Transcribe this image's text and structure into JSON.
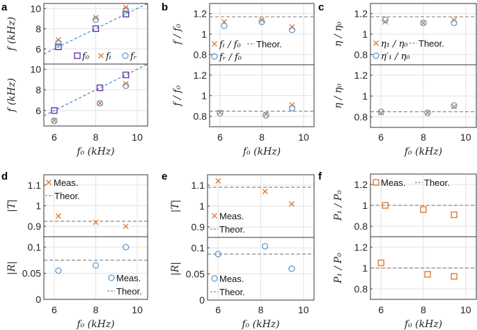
{
  "colors": {
    "f0": "#6a35a8",
    "meas_x": "#e8782b",
    "meas_o": "#5b9bd5",
    "theory": "#888888",
    "fit": "#3d85c6"
  },
  "chart_data": [
    {
      "panel": "a",
      "type": "scatter",
      "xlabel": "f₀ (kHz)",
      "xlim": [
        5.5,
        10.5
      ],
      "xticks": [
        6,
        8,
        10
      ],
      "grid": true,
      "subplots": [
        {
          "ylabel": "f (kHz)",
          "ylim": [
            4.5,
            10.5
          ],
          "yticks": [
            6,
            8,
            10
          ],
          "theory": null,
          "fit_line": "y = x",
          "series": [
            {
              "name": "f₀",
              "marker": "square",
              "color": "#6a35a8",
              "x": [
                6.2,
                8,
                9.45
              ],
              "y": [
                6.2,
                8,
                9.45
              ]
            },
            {
              "name": "fₜ",
              "marker": "x",
              "color": "#e8782b",
              "x": [
                6.2,
                8,
                9.45
              ],
              "y": [
                6.9,
                9.1,
                10.1
              ]
            },
            {
              "name": "fᵣ",
              "marker": "circle",
              "color": "#5b9bd5",
              "x": [
                6.2,
                8,
                9.45
              ],
              "y": [
                6.6,
                8.9,
                9.85
              ]
            }
          ],
          "legend": [
            {
              "text": "f₀",
              "marker": "square",
              "color": "#6a35a8"
            },
            {
              "text": "fₜ",
              "marker": "x",
              "color": "#e8782b"
            },
            {
              "text": "fᵣ",
              "marker": "circle",
              "color": "#5b9bd5"
            }
          ]
        },
        {
          "ylabel": "f (kHz)",
          "ylim": [
            4.5,
            10.5
          ],
          "yticks": [
            6,
            8,
            10
          ],
          "theory": null,
          "fit_line": "y = x",
          "series": [
            {
              "marker": "square",
              "color": "#6a35a8",
              "x": [
                6,
                8.2,
                9.45
              ],
              "y": [
                6,
                8.2,
                9.45
              ]
            },
            {
              "marker": "x",
              "color": "#e8782b",
              "x": [
                6,
                8.2,
                9.45
              ],
              "y": [
                5.05,
                6.7,
                8.6
              ]
            },
            {
              "marker": "circle",
              "color": "#5b9bd5",
              "x": [
                6,
                8.2,
                9.45
              ],
              "y": [
                5.0,
                6.7,
                8.4
              ]
            }
          ],
          "legend": []
        }
      ]
    },
    {
      "panel": "b",
      "type": "scatter",
      "xlabel": "f₀ (kHz)",
      "xlim": [
        5.5,
        10.5
      ],
      "xticks": [
        6,
        8,
        10
      ],
      "grid": true,
      "subplots": [
        {
          "ylabel": "f / f₀",
          "ylim": [
            0.7,
            1.3
          ],
          "yticks": [
            0.8,
            1,
            1.2
          ],
          "theory": 1.17,
          "series": [
            {
              "name": "fₜ / f₀",
              "marker": "x",
              "color": "#e8782b",
              "x": [
                6.2,
                8,
                9.45
              ],
              "y": [
                1.12,
                1.14,
                1.07
              ]
            },
            {
              "name": "fᵣ / f₀",
              "marker": "circle",
              "color": "#5b9bd5",
              "x": [
                6.2,
                8,
                9.45
              ],
              "y": [
                1.08,
                1.12,
                1.04
              ]
            }
          ],
          "legend": [
            {
              "text": "fₜ / f₀",
              "marker": "x",
              "color": "#e8782b"
            },
            {
              "text": "Theor.",
              "marker": "dash",
              "color": "#888888"
            },
            {
              "text": "fᵣ / f₀",
              "marker": "circle",
              "color": "#5b9bd5"
            }
          ]
        },
        {
          "ylabel": "f / f₀",
          "ylim": [
            0.7,
            1.3
          ],
          "yticks": [
            0.8,
            1,
            1.2
          ],
          "theory": 0.85,
          "series": [
            {
              "marker": "x",
              "color": "#e8782b",
              "x": [
                6,
                8.2,
                9.45
              ],
              "y": [
                0.84,
                0.82,
                0.91
              ]
            },
            {
              "marker": "circle",
              "color": "#5b9bd5",
              "x": [
                6,
                8.2,
                9.45
              ],
              "y": [
                0.83,
                0.81,
                0.88
              ]
            }
          ],
          "legend": []
        }
      ]
    },
    {
      "panel": "c",
      "type": "scatter",
      "xlabel": "f₀ (kHz)",
      "xlim": [
        5.5,
        10.5
      ],
      "xticks": [
        6,
        8,
        10
      ],
      "grid": true,
      "subplots": [
        {
          "ylabel": "η / η₀",
          "ylim": [
            0.7,
            1.3
          ],
          "yticks": [
            0.8,
            1,
            1.2
          ],
          "theory": 1.17,
          "series": [
            {
              "name": "η₁ / η₀",
              "marker": "x",
              "color": "#e8782b",
              "x": [
                6.2,
                8,
                9.45
              ],
              "y": [
                1.12,
                1.11,
                1.14
              ]
            },
            {
              "name": "η′₁ / η₀",
              "marker": "circle",
              "color": "#5b9bd5",
              "x": [
                6.2,
                8,
                9.45
              ],
              "y": [
                1.14,
                1.11,
                1.11
              ]
            }
          ],
          "legend": [
            {
              "text": "η₁ / η₀",
              "marker": "x",
              "color": "#e8782b"
            },
            {
              "text": "Theor.",
              "marker": "dash",
              "color": "#888888"
            },
            {
              "text": "η′₁ / η₀",
              "marker": "circle",
              "color": "#5b9bd5"
            }
          ]
        },
        {
          "ylabel": "η / η₀",
          "ylim": [
            0.7,
            1.3
          ],
          "yticks": [
            0.8,
            1,
            1.2
          ],
          "theory": 0.85,
          "series": [
            {
              "marker": "x",
              "color": "#e8782b",
              "x": [
                6,
                8.2,
                9.45
              ],
              "y": [
                0.84,
                0.84,
                0.9
              ]
            },
            {
              "marker": "circle",
              "color": "#5b9bd5",
              "x": [
                6,
                8.2,
                9.45
              ],
              "y": [
                0.85,
                0.84,
                0.91
              ]
            }
          ],
          "legend": []
        }
      ]
    },
    {
      "panel": "d",
      "type": "scatter",
      "xlabel": "f₀ (kHz)",
      "xlim": [
        5.5,
        10.5
      ],
      "xticks": [
        6,
        8,
        10
      ],
      "grid": true,
      "subplots": [
        {
          "ylabel": "|T|",
          "ylim": [
            0.85,
            1.15
          ],
          "yticks": [
            0.9,
            1,
            1.1
          ],
          "theory": 0.925,
          "series": [
            {
              "name": "Meas.",
              "marker": "x",
              "color": "#e8782b",
              "x": [
                6.2,
                8,
                9.45
              ],
              "y": [
                0.95,
                0.92,
                0.9
              ]
            }
          ],
          "legend": [
            {
              "text": "Meas.",
              "marker": "x",
              "color": "#e8782b"
            },
            {
              "text": "Theor.",
              "marker": "dash",
              "color": "#888888"
            }
          ]
        },
        {
          "ylabel": "|R|",
          "ylim": [
            0,
            0.12
          ],
          "yticks": [
            0,
            0.05,
            0.1
          ],
          "theory": 0.075,
          "series": [
            {
              "name": "Meas.",
              "marker": "circle",
              "color": "#5b9bd5",
              "x": [
                6.2,
                8,
                9.45
              ],
              "y": [
                0.055,
                0.065,
                0.1
              ]
            }
          ],
          "legend": [
            {
              "text": "Meas.",
              "marker": "circle",
              "color": "#5b9bd5"
            },
            {
              "text": "Theor.",
              "marker": "dash",
              "color": "#888888"
            }
          ]
        }
      ]
    },
    {
      "panel": "e",
      "type": "scatter",
      "xlabel": "f₀ (kHz)",
      "xlim": [
        5.5,
        10.5
      ],
      "xticks": [
        6,
        8,
        10
      ],
      "grid": true,
      "subplots": [
        {
          "ylabel": "|T|",
          "ylim": [
            0.85,
            1.15
          ],
          "yticks": [
            0.9,
            1,
            1.1
          ],
          "theory": 1.09,
          "series": [
            {
              "name": "Meas.",
              "marker": "x",
              "color": "#e8782b",
              "x": [
                6,
                8.2,
                9.45
              ],
              "y": [
                1.12,
                1.07,
                1.01
              ]
            }
          ],
          "legend": [
            {
              "text": "Meas.",
              "marker": "x",
              "color": "#e8782b"
            },
            {
              "text": "Theor.",
              "marker": "dash",
              "color": "#888888"
            }
          ]
        },
        {
          "ylabel": "|R|",
          "ylim": [
            0,
            0.12
          ],
          "yticks": [
            0,
            0.05,
            0.1
          ],
          "theory": 0.088,
          "series": [
            {
              "name": "Meas.",
              "marker": "circle",
              "color": "#5b9bd5",
              "x": [
                6,
                8.2,
                9.45
              ],
              "y": [
                0.088,
                0.103,
                0.06
              ]
            }
          ],
          "legend": [
            {
              "text": "Meas.",
              "marker": "circle",
              "color": "#5b9bd5"
            },
            {
              "text": "Theor.",
              "marker": "dash",
              "color": "#888888"
            }
          ]
        }
      ]
    },
    {
      "panel": "f",
      "type": "scatter",
      "xlabel": "f₀ (kHz)",
      "xlim": [
        5.5,
        10.5
      ],
      "xticks": [
        6,
        8,
        10
      ],
      "grid": true,
      "subplots": [
        {
          "ylabel": "P₁ / P₀",
          "ylim": [
            0.7,
            1.3
          ],
          "yticks": [
            0.8,
            1,
            1.2
          ],
          "theory": 1.0,
          "series": [
            {
              "name": "Meas.",
              "marker": "square",
              "color": "#e8782b",
              "x": [
                6.2,
                8,
                9.45
              ],
              "y": [
                1.0,
                0.96,
                0.91
              ]
            }
          ],
          "legend": [
            {
              "text": "Meas.",
              "marker": "square",
              "color": "#e8782b"
            },
            {
              "text": "Theor.",
              "marker": "dash",
              "color": "#888888"
            }
          ]
        },
        {
          "ylabel": "P₁ / P₀",
          "ylim": [
            0.7,
            1.3
          ],
          "yticks": [
            0.8,
            1,
            1.2
          ],
          "theory": 1.0,
          "series": [
            {
              "marker": "square",
              "color": "#e8782b",
              "x": [
                6,
                8.2,
                9.45
              ],
              "y": [
                1.05,
                0.94,
                0.92
              ]
            }
          ],
          "legend": []
        }
      ]
    }
  ]
}
